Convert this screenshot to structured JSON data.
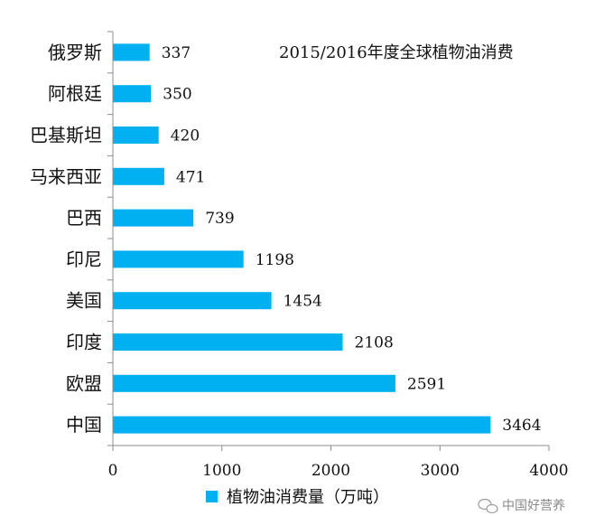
{
  "chart_data": {
    "type": "bar",
    "orientation": "horizontal",
    "title": "2015/2016年度全球植物油消费",
    "categories": [
      "中国",
      "欧盟",
      "印度",
      "美国",
      "印尼",
      "巴西",
      "马来西亚",
      "巴基斯坦",
      "阿根廷",
      "俄罗斯"
    ],
    "series": [
      {
        "name": "植物油消费量（万吨）",
        "values": [
          3464,
          2591,
          2108,
          1454,
          1198,
          739,
          471,
          420,
          350,
          337
        ],
        "color": "#00b0f0"
      }
    ],
    "xlim": [
      0,
      4000
    ],
    "x_ticks": [
      0,
      1000,
      2000,
      3000,
      4000
    ],
    "grid": false,
    "legend_position": "bottom",
    "data_labels": true
  },
  "watermark": {
    "text": "中国好营养",
    "icon": "wechat-icon"
  }
}
